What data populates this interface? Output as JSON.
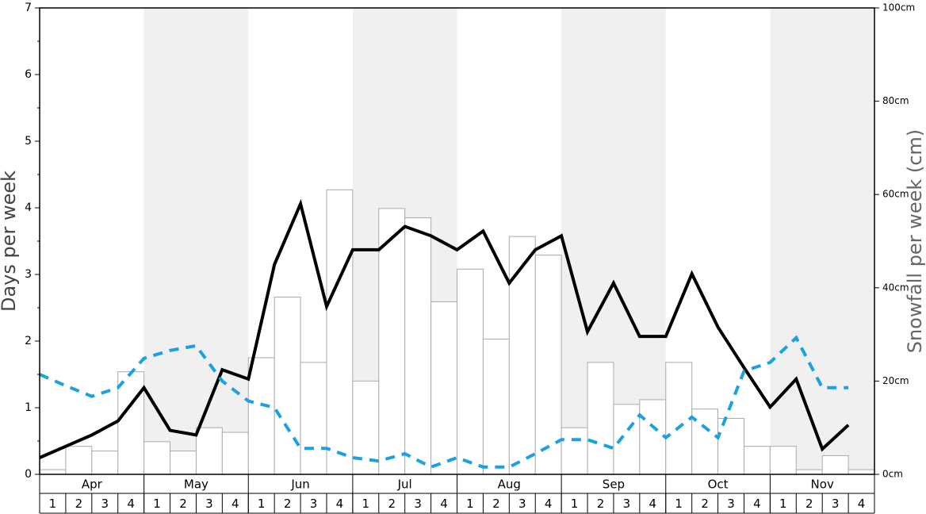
{
  "chart_data": {
    "type": "bar",
    "ylabel": "Days per week",
    "y2label": "Snowfall per week (cm)",
    "months": [
      "Apr",
      "May",
      "Jun",
      "Jul",
      "Aug",
      "Sep",
      "Oct",
      "Nov"
    ],
    "categories": [
      "1",
      "2",
      "3",
      "4",
      "1",
      "2",
      "3",
      "4",
      "1",
      "2",
      "3",
      "4",
      "1",
      "2",
      "3",
      "4",
      "1",
      "2",
      "3",
      "4",
      "1",
      "2",
      "3",
      "4",
      "1",
      "2",
      "3",
      "4",
      "1",
      "2",
      "3",
      "4"
    ],
    "ylim": [
      0,
      7
    ],
    "yticks": [
      0,
      1,
      2,
      3,
      4,
      5,
      6,
      7
    ],
    "y2lim": [
      0,
      100
    ],
    "y2ticks": [
      {
        "value": 0,
        "label": "0cm"
      },
      {
        "value": 20,
        "label": "20cm"
      },
      {
        "value": 40,
        "label": "40cm"
      },
      {
        "value": 60,
        "label": "60cm"
      },
      {
        "value": 80,
        "label": "80cm"
      },
      {
        "value": 100,
        "label": "100cm"
      }
    ],
    "band_color": "#f0f0f0",
    "series": [
      {
        "type": "bar",
        "axis": "y2",
        "color": "#ffffff",
        "edge_color": "#aaaaaa",
        "values": [
          1,
          6,
          5,
          22,
          7,
          5,
          10,
          9,
          25,
          38,
          24,
          61,
          20,
          57,
          55,
          37,
          44,
          29,
          51,
          47,
          10,
          24,
          15,
          16,
          24,
          14,
          12,
          6,
          6,
          1,
          4,
          1
        ]
      },
      {
        "type": "line",
        "color": "#000000",
        "dashed": false,
        "values": [
          0.25,
          0.42,
          0.59,
          0.8,
          1.3,
          0.66,
          0.59,
          1.57,
          1.43,
          3.15,
          4.06,
          2.52,
          3.37,
          3.37,
          3.72,
          3.58,
          3.37,
          3.65,
          2.87,
          3.37,
          3.58,
          2.14,
          2.87,
          2.07,
          2.07,
          3.01,
          2.21,
          1.6,
          1.01,
          1.43,
          0.38,
          0.74
        ]
      },
      {
        "type": "line",
        "color": "#1ba1e2",
        "dashed": true,
        "values": [
          1.5,
          1.33,
          1.17,
          1.3,
          1.74,
          1.86,
          1.93,
          1.4,
          1.1,
          1.0,
          0.39,
          0.39,
          0.25,
          0.2,
          0.31,
          0.11,
          0.25,
          0.11,
          0.11,
          0.31,
          0.52,
          0.52,
          0.39,
          0.89,
          0.55,
          0.86,
          0.55,
          1.55,
          1.68,
          2.05,
          1.3,
          1.3
        ]
      }
    ]
  }
}
